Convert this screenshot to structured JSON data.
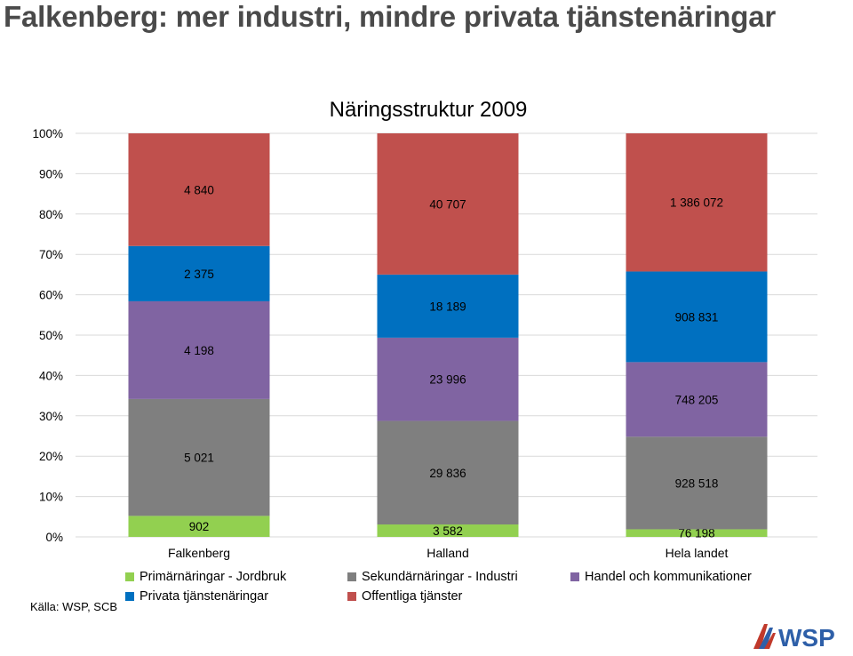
{
  "page": {
    "title": "Falkenberg: mer industri, mindre privata tjänstenäringar",
    "source": "Källa: WSP, SCB",
    "logo_text": "WSP"
  },
  "colors": {
    "title": "#4a4a4a",
    "grid": "#d9d9d9"
  },
  "chart_data": {
    "type": "bar",
    "stacked": "percent",
    "title": "Näringsstruktur 2009",
    "categories": [
      "Falkenberg",
      "Halland",
      "Hela landet"
    ],
    "y_ticks": [
      "0%",
      "10%",
      "20%",
      "30%",
      "40%",
      "50%",
      "60%",
      "70%",
      "80%",
      "90%",
      "100%"
    ],
    "ylim": [
      0,
      100
    ],
    "grid": true,
    "legend_position": "bottom",
    "series": [
      {
        "name": "Primärnäringar - Jordbruk",
        "color": "#92d050",
        "values": [
          902,
          3582,
          76198
        ],
        "labels": [
          "902",
          "3 582",
          "76 198"
        ]
      },
      {
        "name": "Sekundärnäringar - Industri",
        "color": "#7f7f7f",
        "values": [
          5021,
          29836,
          928518
        ],
        "labels": [
          "5 021",
          "29 836",
          "928 518"
        ]
      },
      {
        "name": "Handel och kommunikationer",
        "color": "#8064a2",
        "values": [
          4198,
          23996,
          748205
        ],
        "labels": [
          "4 198",
          "23 996",
          "748 205"
        ]
      },
      {
        "name": "Privata tjänstenäringar",
        "color": "#0070c0",
        "values": [
          2375,
          18189,
          908831
        ],
        "labels": [
          "2 375",
          "18 189",
          "908 831"
        ]
      },
      {
        "name": "Offentliga tjänster",
        "color": "#c0504d",
        "values": [
          4840,
          40707,
          1386072
        ],
        "labels": [
          "4 840",
          "40 707",
          "1 386 072"
        ]
      }
    ]
  }
}
